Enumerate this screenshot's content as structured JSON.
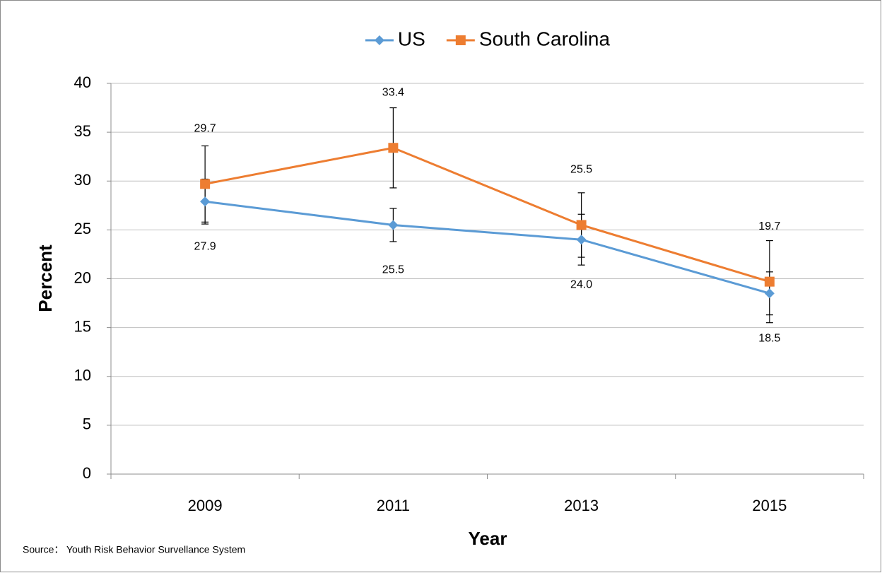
{
  "chart_data": {
    "type": "line",
    "categories": [
      "2009",
      "2011",
      "2013",
      "2015"
    ],
    "series": [
      {
        "name": "US",
        "color": "#5b9bd5",
        "marker": "diamond",
        "values": [
          27.9,
          25.5,
          24.0,
          18.5
        ],
        "value_labels": [
          "27.9",
          "25.5",
          "24.0",
          "18.5"
        ],
        "errors": [
          2.3,
          1.7,
          2.6,
          2.2
        ]
      },
      {
        "name": "South Carolina",
        "color": "#ed7d31",
        "marker": "square",
        "values": [
          29.7,
          33.4,
          25.5,
          19.7
        ],
        "value_labels": [
          "29.7",
          "33.4",
          "25.5",
          "19.7"
        ],
        "errors": [
          3.9,
          4.1,
          3.3,
          4.2
        ]
      }
    ],
    "ylim": [
      0,
      40
    ],
    "yticks": [
      0,
      5,
      10,
      15,
      20,
      25,
      30,
      35,
      40
    ],
    "grid": true,
    "ylabel": "Percent",
    "xlabel": "Year",
    "source": "Source： Youth Risk Behavior Survellance System",
    "legend": "top"
  }
}
